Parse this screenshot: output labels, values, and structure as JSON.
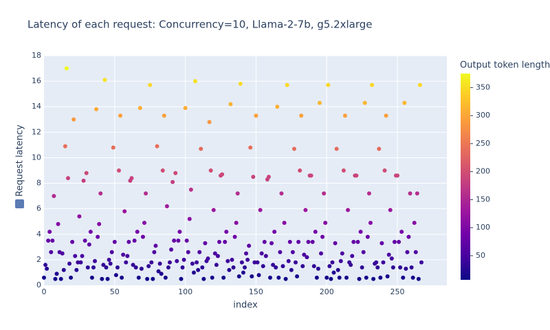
{
  "chart_data": {
    "type": "scatter",
    "title": "Latency of each request: Concurrency=10, Llama-2-7b, g5.2xlarge",
    "x_label": "index",
    "y_label": "Request latency",
    "color_label": "Output token length",
    "xlim": [
      0,
      285
    ],
    "xticks": [
      0,
      50,
      100,
      150,
      200,
      250
    ],
    "ylim": [
      0,
      18
    ],
    "yticks": [
      0,
      2,
      4,
      6,
      8,
      10,
      12,
      14,
      16,
      18
    ],
    "clim": [
      7,
      375
    ],
    "cticks": [
      50,
      100,
      150,
      200,
      250,
      300,
      350
    ],
    "colorscale": [
      "#0d0887",
      "#46039f",
      "#7201a8",
      "#9c179e",
      "#bd3786",
      "#d8576b",
      "#ed7953",
      "#fb9f3a",
      "#fdca26",
      "#f0f921"
    ],
    "grid": true,
    "x": [
      0,
      1,
      2,
      3,
      4,
      5,
      6,
      7,
      8,
      9,
      10,
      11,
      12,
      13,
      14,
      15,
      16,
      17,
      18,
      19,
      20,
      21,
      22,
      23,
      24,
      25,
      26,
      27,
      28,
      29,
      30,
      31,
      32,
      33,
      34,
      35,
      36,
      37,
      38,
      39,
      40,
      41,
      42,
      43,
      44,
      45,
      46,
      47,
      48,
      49,
      50,
      51,
      52,
      53,
      54,
      55,
      56,
      57,
      58,
      59,
      60,
      61,
      62,
      63,
      64,
      65,
      66,
      67,
      68,
      69,
      70,
      71,
      72,
      73,
      74,
      75,
      76,
      77,
      78,
      79,
      80,
      81,
      82,
      83,
      84,
      85,
      86,
      87,
      88,
      89,
      90,
      91,
      92,
      93,
      94,
      95,
      96,
      97,
      98,
      99,
      100,
      101,
      102,
      103,
      104,
      105,
      106,
      107,
      108,
      109,
      110,
      111,
      112,
      113,
      114,
      115,
      116,
      117,
      118,
      119,
      120,
      121,
      122,
      123,
      124,
      125,
      126,
      127,
      128,
      129,
      130,
      131,
      132,
      133,
      134,
      135,
      136,
      137,
      138,
      139,
      140,
      141,
      142,
      143,
      144,
      145,
      146,
      147,
      148,
      149,
      150,
      151,
      152,
      153,
      154,
      155,
      156,
      157,
      158,
      159,
      160,
      161,
      162,
      163,
      164,
      165,
      166,
      167,
      168,
      169,
      170,
      171,
      172,
      173,
      174,
      175,
      176,
      177,
      178,
      179,
      180,
      181,
      182,
      183,
      184,
      185,
      186,
      187,
      188,
      189,
      190,
      191,
      192,
      193,
      194,
      195,
      196,
      197,
      198,
      199,
      200,
      201,
      202,
      203,
      204,
      205,
      206,
      207,
      208,
      209,
      210,
      211,
      212,
      213,
      214,
      215,
      216,
      217,
      218,
      219,
      220,
      221,
      222,
      223,
      224,
      225,
      226,
      227,
      228,
      229,
      230,
      231,
      232,
      233,
      234,
      235,
      236,
      237,
      238,
      239,
      240,
      241,
      242,
      243,
      244,
      245,
      246,
      247,
      248,
      249,
      250,
      251,
      252,
      253,
      254,
      255,
      256,
      257,
      258,
      259,
      260,
      261,
      262,
      263,
      264,
      265,
      266,
      267
    ],
    "values": [
      0.6,
      1.6,
      1.3,
      3.5,
      4.2,
      2.6,
      3.5,
      7.0,
      0.5,
      0.9,
      4.8,
      2.6,
      0.5,
      2.5,
      1.2,
      10.9,
      17.0,
      8.4,
      1.7,
      0.6,
      3.4,
      13.0,
      2.3,
      1.2,
      1.8,
      5.4,
      1.8,
      2.3,
      8.2,
      3.5,
      8.8,
      1.4,
      3.2,
      4.2,
      0.6,
      1.4,
      1.9,
      13.8,
      3.8,
      4.8,
      7.2,
      0.5,
      1.6,
      16.1,
      1.4,
      0.5,
      2.0,
      1.7,
      2.6,
      10.8,
      3.4,
      0.8,
      1.4,
      9.0,
      13.3,
      0.6,
      2.4,
      5.8,
      1.8,
      2.3,
      3.4,
      8.2,
      8.4,
      1.6,
      3.5,
      1.4,
      4.2,
      0.6,
      13.9,
      1.3,
      3.8,
      4.9,
      7.2,
      0.5,
      1.5,
      15.7,
      1.8,
      0.5,
      2.6,
      3.1,
      10.9,
      1.1,
      1.7,
      0.9,
      9.0,
      13.3,
      0.6,
      6.2,
      1.4,
      1.8,
      2.8,
      8.1,
      3.5,
      8.8,
      1.9,
      3.5,
      4.2,
      0.5,
      1.4,
      2.0,
      13.9,
      3.5,
      2.6,
      5.2,
      7.5,
      1.7,
      1.0,
      16.0,
      1.8,
      1.2,
      2.6,
      10.7,
      1.4,
      0.5,
      3.3,
      1.9,
      2.1,
      12.8,
      9.0,
      0.6,
      5.9,
      2.5,
      1.6,
      2.3,
      3.4,
      8.6,
      8.7,
      0.6,
      3.4,
      4.2,
      1.9,
      1.2,
      14.2,
      2.0,
      1.4,
      3.8,
      4.9,
      7.2,
      0.7,
      15.8,
      1.8,
      1.0,
      1.4,
      2.5,
      2.0,
      3.1,
      10.8,
      0.7,
      8.5,
      1.8,
      13.3,
      1.8,
      0.8,
      5.9,
      2.5,
      1.5,
      3.4,
      2.3,
      8.3,
      8.5,
      0.6,
      3.3,
      1.6,
      4.2,
      1.4,
      14.0,
      0.6,
      2.6,
      7.2,
      1.5,
      4.9,
      0.5,
      15.7,
      1.9,
      3.4,
      1.2,
      2.6,
      10.7,
      1.8,
      0.7,
      3.4,
      9.0,
      13.3,
      1.5,
      2.4,
      5.9,
      2.2,
      3.4,
      8.6,
      8.6,
      3.4,
      1.5,
      4.2,
      0.6,
      1.3,
      14.3,
      2.5,
      3.8,
      7.2,
      4.9,
      0.6,
      15.7,
      1.5,
      0.5,
      1.8,
      1.0,
      3.3,
      10.7,
      1.2,
      0.6,
      1.9,
      2.5,
      9.0,
      13.3,
      0.6,
      5.9,
      1.8,
      1.6,
      2.3,
      3.4,
      8.6,
      8.6,
      3.4,
      0.5,
      4.2,
      1.4,
      2.6,
      14.3,
      0.6,
      3.8,
      7.2,
      4.9,
      15.7,
      0.5,
      1.7,
      1.8,
      1.4,
      10.7,
      0.6,
      3.3,
      1.8,
      9.0,
      13.3,
      0.7,
      2.4,
      5.9,
      2.1,
      1.4,
      3.4,
      8.6,
      8.6,
      3.4,
      1.4,
      4.2,
      0.6,
      14.3,
      1.3,
      2.6,
      3.8,
      7.2,
      1.4,
      0.6,
      4.9,
      2.6,
      7.2,
      0.5,
      15.7,
      1.8
    ],
    "color_values": [
      13,
      35,
      29,
      77,
      92,
      57,
      77,
      154,
      11,
      20,
      106,
      57,
      11,
      55,
      26,
      240,
      374,
      185,
      37,
      13,
      75,
      286,
      51,
      26,
      40,
      119,
      40,
      51,
      180,
      77,
      194,
      31,
      70,
      92,
      13,
      31,
      42,
      304,
      84,
      106,
      158,
      11,
      35,
      354,
      31,
      11,
      44,
      37,
      57,
      238,
      75,
      18,
      31,
      198,
      293,
      13,
      53,
      128,
      40,
      51,
      75,
      180,
      185,
      35,
      77,
      31,
      92,
      13,
      306,
      29,
      84,
      108,
      158,
      11,
      33,
      345,
      40,
      11,
      57,
      68,
      240,
      24,
      37,
      20,
      198,
      293,
      13,
      136,
      31,
      40,
      62,
      178,
      77,
      194,
      42,
      77,
      92,
      11,
      31,
      44,
      306,
      77,
      57,
      114,
      165,
      37,
      22,
      352,
      40,
      26,
      57,
      235,
      31,
      11,
      73,
      42,
      46,
      282,
      198,
      13,
      130,
      55,
      35,
      51,
      75,
      189,
      191,
      13,
      75,
      92,
      42,
      26,
      312,
      44,
      31,
      84,
      108,
      158,
      15,
      348,
      40,
      22,
      31,
      55,
      44,
      68,
      238,
      15,
      187,
      40,
      293,
      40,
      18,
      130,
      55,
      33,
      75,
      51,
      183,
      187,
      13,
      73,
      35,
      92,
      31,
      308,
      13,
      57,
      158,
      33,
      108,
      11,
      345,
      42,
      75,
      26,
      57,
      235,
      40,
      15,
      75,
      198,
      293,
      33,
      53,
      130,
      48,
      75,
      189,
      189,
      75,
      33,
      92,
      13,
      29,
      315,
      55,
      84,
      158,
      108,
      13,
      345,
      33,
      11,
      40,
      22,
      73,
      235,
      26,
      13,
      42,
      55,
      198,
      293,
      13,
      130,
      40,
      35,
      51,
      75,
      189,
      189,
      75,
      11,
      92,
      31,
      57,
      315,
      13,
      84,
      158,
      108,
      345,
      11,
      37,
      40,
      31,
      235,
      13,
      73,
      40,
      198,
      293,
      15,
      53,
      130,
      46,
      31,
      75,
      189,
      189,
      75,
      31,
      92,
      13,
      315,
      29,
      57,
      84,
      158,
      31,
      13,
      108,
      57,
      158,
      11,
      345,
      40
    ]
  }
}
